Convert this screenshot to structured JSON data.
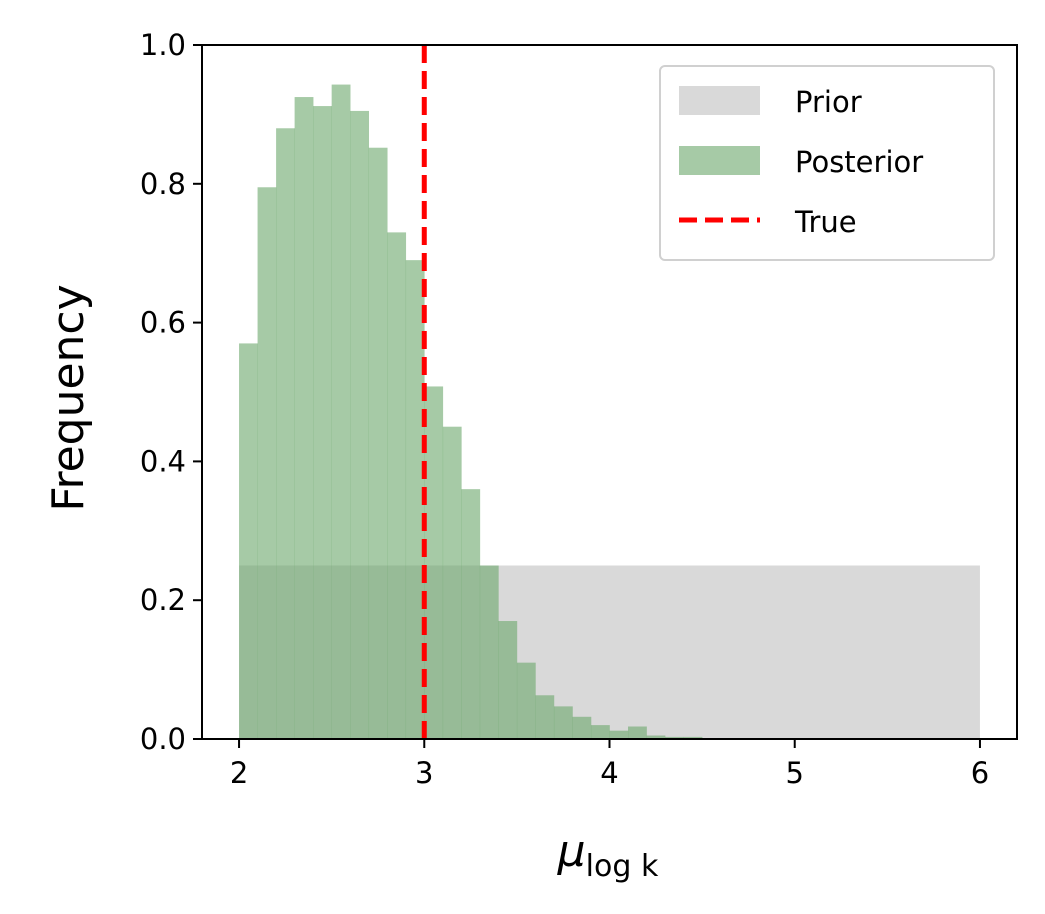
{
  "chart_data": {
    "type": "bar",
    "title": "",
    "xlabel_main": "μ",
    "xlabel_sub": "log k",
    "ylabel": "Frequency",
    "xlim": [
      1.8,
      6.2
    ],
    "ylim": [
      0,
      1.0
    ],
    "x_ticks": [
      "2",
      "3",
      "4",
      "5",
      "6"
    ],
    "x_tick_values": [
      2,
      3,
      4,
      5,
      6
    ],
    "y_ticks": [
      "0.0",
      "0.2",
      "0.4",
      "0.6",
      "0.8",
      "1.0"
    ],
    "y_tick_values": [
      0.0,
      0.2,
      0.4,
      0.6,
      0.8,
      1.0
    ],
    "grid": false,
    "legend_position": "upper right",
    "series": [
      {
        "name": "Prior",
        "kind": "histogram",
        "color": "#bfbfbf",
        "opacity": 0.6,
        "bins": [
          [
            2.0,
            6.0,
            0.25
          ]
        ]
      },
      {
        "name": "Posterior",
        "kind": "histogram",
        "color": "#6aa66a",
        "opacity": 0.6,
        "bin_start": 2.0,
        "bin_width": 0.1,
        "values": [
          0.57,
          0.795,
          0.88,
          0.925,
          0.912,
          0.943,
          0.905,
          0.852,
          0.73,
          0.69,
          0.508,
          0.45,
          0.36,
          0.25,
          0.17,
          0.11,
          0.063,
          0.047,
          0.032,
          0.02,
          0.012,
          0.018,
          0.005,
          0.003,
          0.003
        ]
      },
      {
        "name": "True",
        "kind": "vline",
        "color": "#ff0000",
        "x": 3.0,
        "style": "dashed"
      }
    ]
  }
}
